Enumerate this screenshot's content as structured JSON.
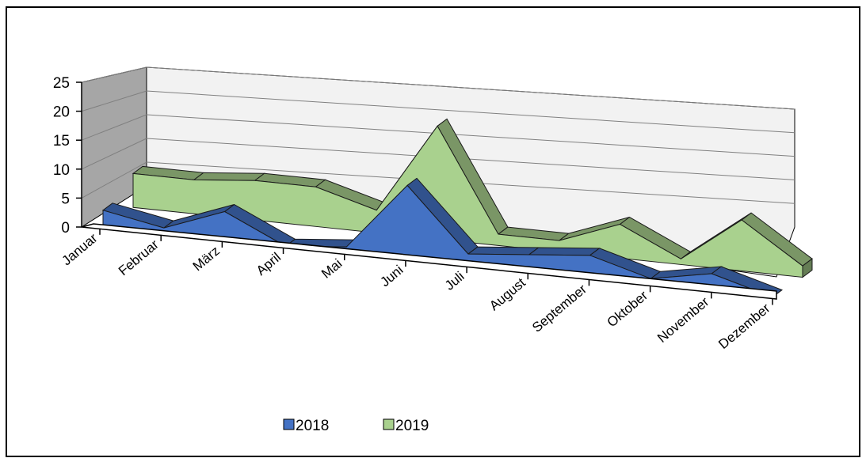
{
  "chart_data": {
    "type": "area",
    "categories": [
      "Januar",
      "Februar",
      "März",
      "April",
      "Mai",
      "Juni",
      "Juli",
      "August",
      "September",
      "Oktober",
      "November",
      "Dezember"
    ],
    "series": [
      {
        "name": "2018",
        "values": [
          3,
          1,
          5,
          0,
          1,
          13,
          2,
          3,
          4,
          1,
          3,
          0
        ],
        "color": "#4472C4"
      },
      {
        "name": "2019",
        "values": [
          6,
          6,
          7,
          7,
          4,
          20,
          2,
          2,
          6,
          1,
          9,
          2
        ],
        "color": "#A9D18E"
      }
    ],
    "y_ticks": [
      "0",
      "5",
      "10",
      "15",
      "20",
      "25"
    ],
    "ylim": [
      0,
      25
    ],
    "grid": true,
    "legend": "bottom",
    "three_d": true
  }
}
